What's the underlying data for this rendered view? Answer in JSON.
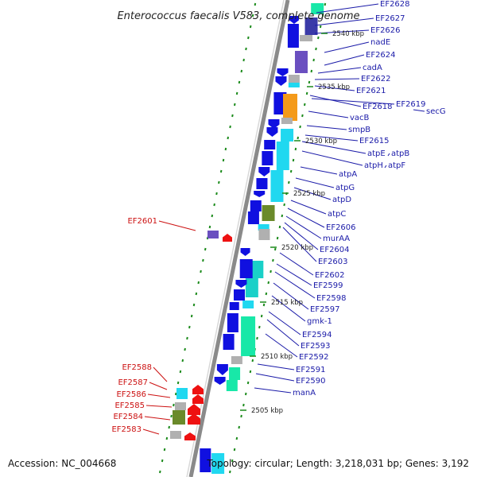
{
  "title": "Enterococcus faecalis V583, complete genome",
  "accession": "Accession: NC_004668",
  "summary": "Topology: circular; Length: 3,218,031 bp; Genes: 3,192",
  "kbp_labels": [
    "2540 kbp",
    "2535 kbp",
    "2530 kbp",
    "2525 kbp",
    "2520 kbp",
    "2515 kbp",
    "2510 kbp",
    "2505 kbp"
  ],
  "blue_labels": [
    "EF2628",
    "EF2627",
    "EF2626",
    "nadE",
    "EF2624",
    "cadA",
    "EF2622",
    "EF2621",
    "EF2618",
    "EF2619",
    "secG",
    "vacB",
    "smpB",
    "EF2615",
    "atpE",
    "atpB",
    "atpH",
    "atpF",
    "atpA",
    "atpG",
    "atpD",
    "atpC",
    "EF2606",
    "murAA",
    "EF2604",
    "EF2603",
    "EF2602",
    "EF2599",
    "EF2598",
    "EF2597",
    "gmk-1",
    "EF2594",
    "EF2593",
    "EF2592",
    "EF2591",
    "EF2590",
    "manA"
  ],
  "red_labels": [
    "EF2601",
    "EF2588",
    "EF2587",
    "EF2586",
    "EF2585",
    "EF2584",
    "EF2583"
  ],
  "colors": {
    "blue_gene": "#1010e0",
    "navy_gene": "#3a3aa8",
    "purple_gene": "#6a4fc0",
    "cyan_gene": "#20d8f0",
    "teal_gene": "#1ad0c8",
    "mint_gene": "#18e8a8",
    "orange_gene": "#f49a1a",
    "olive_gene": "#6a8a2a",
    "gray_gene": "#b0b0b0",
    "red_gene": "#ee1111",
    "label_blue": "#1a1aa8",
    "label_red": "#cc1111",
    "backbone": "#8a8a8a",
    "tick_green": "#1a8a1a"
  }
}
